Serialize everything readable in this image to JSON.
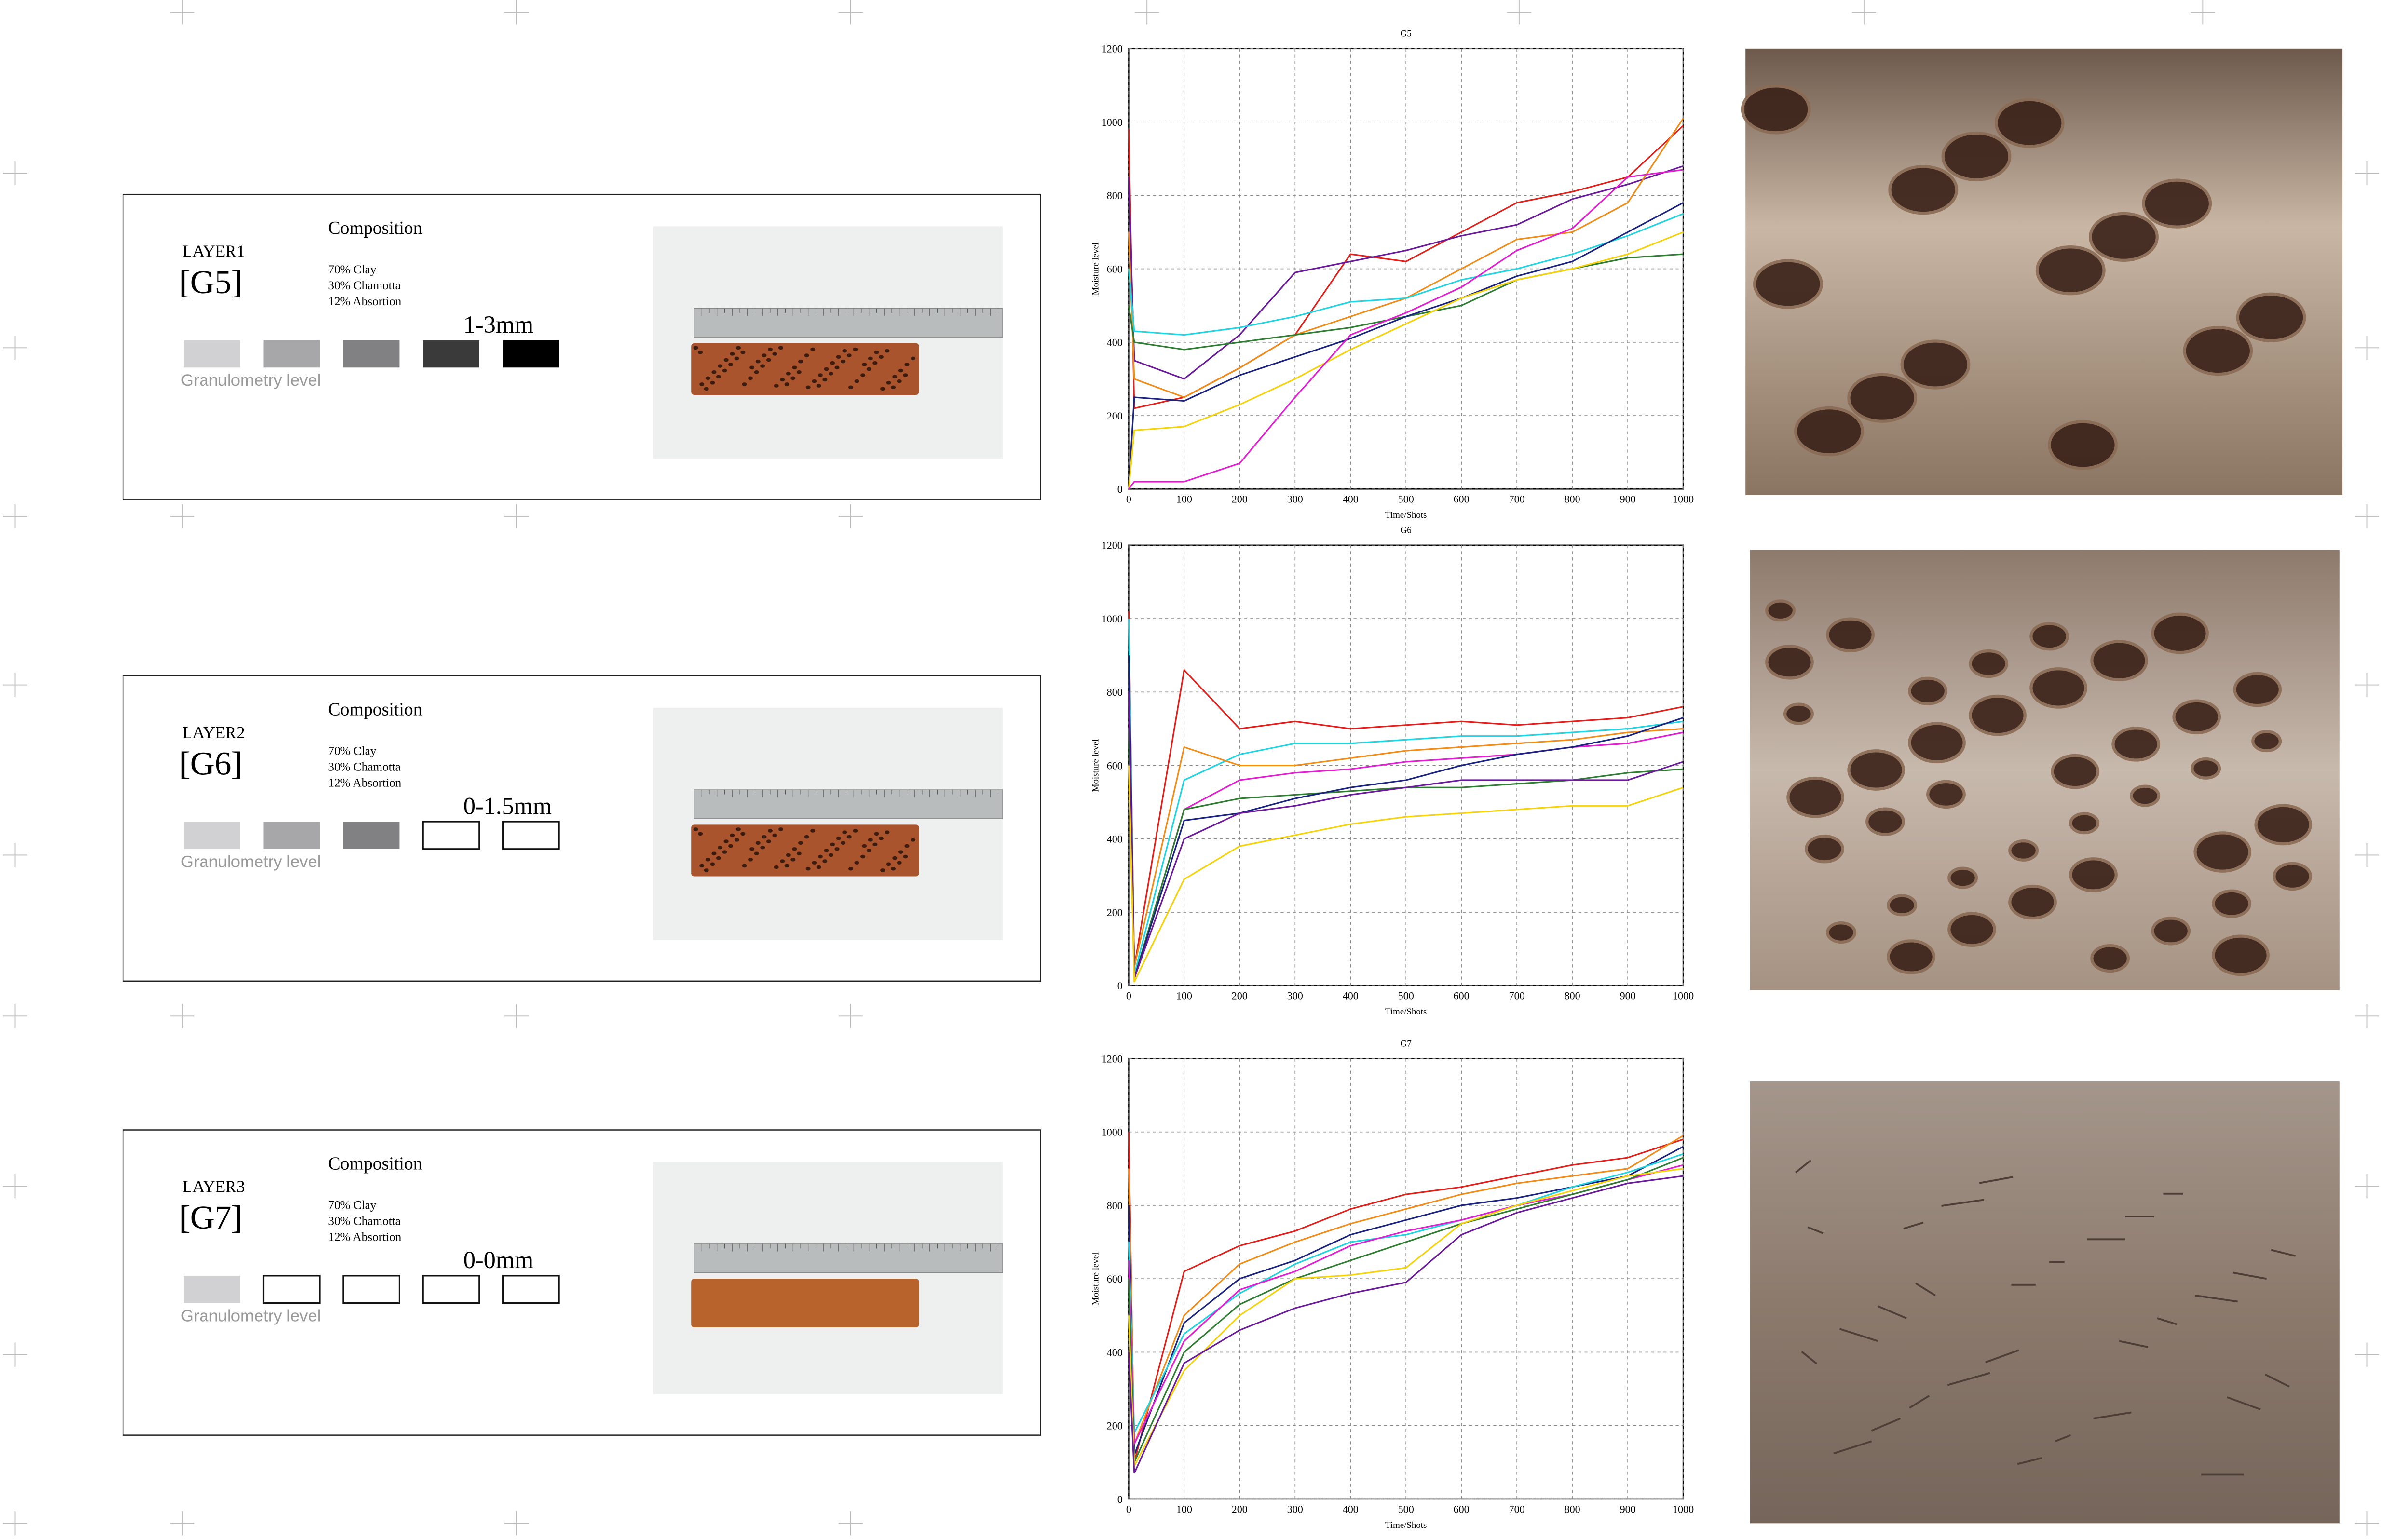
{
  "layers": [
    {
      "label": "LAYER1",
      "code": "[G5]",
      "heading": "Composition",
      "composition": [
        "70% Clay",
        "30% Chamotta",
        "12% Absortion"
      ],
      "size": "1-3mm",
      "granulometry_label": "Granulometry level",
      "level_colors": [
        "#d1d1d3",
        "#a7a7aa",
        "#818184",
        "#3a3a3a",
        "#000000"
      ]
    },
    {
      "label": "LAYER2",
      "code": "[G6]",
      "heading": "Composition",
      "composition": [
        "70% Clay",
        "30% Chamotta",
        "12% Absortion"
      ],
      "size": "0-1.5mm",
      "granulometry_label": "Granulometry level",
      "level_colors": [
        "#d1d1d3",
        "#a7a7aa",
        "#818184",
        "#ffffff",
        "#ffffff"
      ]
    },
    {
      "label": "LAYER3",
      "code": "[G7]",
      "heading": "Composition",
      "composition": [
        "70% Clay",
        "30% Chamotta",
        "12% Absortion"
      ],
      "size": "0-0mm",
      "granulometry_label": "Granulometry level",
      "level_colors": [
        "#d1d1d3",
        "#ffffff",
        "#ffffff",
        "#ffffff",
        "#ffffff"
      ]
    }
  ],
  "chart_data": [
    {
      "type": "line",
      "title": "G5",
      "x_label": "Time/Shots",
      "y_label": "Moisture level",
      "x": [
        0,
        10,
        100,
        200,
        300,
        400,
        500,
        600,
        700,
        800,
        900,
        1000
      ],
      "xlim": [
        0,
        1000
      ],
      "ylim": [
        0,
        1200
      ],
      "xticks": [
        0,
        100,
        200,
        300,
        400,
        500,
        600,
        700,
        800,
        900,
        1000
      ],
      "yticks": [
        0,
        200,
        400,
        600,
        800,
        1000,
        1200
      ],
      "grid": true,
      "series": [
        {
          "color": "#e0201b",
          "values": [
            980,
            220,
            250,
            330,
            420,
            640,
            620,
            700,
            780,
            810,
            850,
            990
          ]
        },
        {
          "color": "#6a1b9a",
          "values": [
            850,
            350,
            300,
            420,
            590,
            620,
            650,
            690,
            720,
            790,
            830,
            880
          ]
        },
        {
          "color": "#f08c1a",
          "values": [
            700,
            300,
            250,
            330,
            420,
            470,
            520,
            600,
            680,
            700,
            780,
            1010
          ]
        },
        {
          "color": "#22d3e0",
          "values": [
            600,
            430,
            420,
            440,
            470,
            510,
            520,
            570,
            600,
            640,
            690,
            750
          ]
        },
        {
          "color": "#2e7d32",
          "values": [
            500,
            400,
            380,
            400,
            420,
            440,
            470,
            500,
            570,
            600,
            630,
            640
          ]
        },
        {
          "color": "#1a237e",
          "values": [
            0,
            250,
            240,
            310,
            360,
            410,
            470,
            520,
            580,
            620,
            700,
            780
          ]
        },
        {
          "color": "#f5d20e",
          "values": [
            0,
            160,
            170,
            230,
            300,
            380,
            450,
            520,
            570,
            600,
            640,
            700
          ]
        },
        {
          "color": "#e020d0",
          "values": [
            0,
            20,
            20,
            70,
            250,
            420,
            480,
            550,
            650,
            710,
            850,
            870
          ]
        }
      ]
    },
    {
      "type": "line",
      "title": "G6",
      "x_label": "Time/Shots",
      "y_label": "Moisture level",
      "x": [
        0,
        10,
        100,
        200,
        300,
        400,
        500,
        600,
        700,
        800,
        900,
        1000
      ],
      "xlim": [
        0,
        1000
      ],
      "ylim": [
        0,
        1200
      ],
      "xticks": [
        0,
        100,
        200,
        300,
        400,
        500,
        600,
        700,
        800,
        900,
        1000
      ],
      "yticks": [
        0,
        200,
        400,
        600,
        800,
        1000,
        1200
      ],
      "grid": true,
      "series": [
        {
          "color": "#e0201b",
          "values": [
            1020,
            50,
            860,
            700,
            720,
            700,
            710,
            720,
            710,
            720,
            730,
            760
          ]
        },
        {
          "color": "#22d3e0",
          "values": [
            1000,
            30,
            560,
            630,
            660,
            660,
            670,
            680,
            680,
            690,
            700,
            720
          ]
        },
        {
          "color": "#f08c1a",
          "values": [
            900,
            50,
            650,
            600,
            600,
            620,
            640,
            650,
            660,
            670,
            690,
            700
          ]
        },
        {
          "color": "#e020d0",
          "values": [
            800,
            20,
            480,
            560,
            580,
            590,
            610,
            620,
            630,
            650,
            660,
            690
          ]
        },
        {
          "color": "#2e7d32",
          "values": [
            700,
            20,
            480,
            510,
            520,
            530,
            540,
            540,
            550,
            560,
            580,
            590
          ]
        },
        {
          "color": "#1a237e",
          "values": [
            900,
            20,
            450,
            470,
            510,
            540,
            560,
            600,
            630,
            650,
            680,
            730
          ]
        },
        {
          "color": "#6a1b9a",
          "values": [
            800,
            20,
            400,
            470,
            490,
            520,
            540,
            560,
            560,
            560,
            560,
            610
          ]
        },
        {
          "color": "#f5d20e",
          "values": [
            600,
            10,
            290,
            380,
            410,
            440,
            460,
            470,
            480,
            490,
            490,
            540
          ]
        }
      ]
    },
    {
      "type": "line",
      "title": "G7",
      "x_label": "Time/Shots",
      "y_label": "Moisture level",
      "x": [
        0,
        10,
        100,
        200,
        300,
        400,
        500,
        600,
        700,
        800,
        900,
        1000
      ],
      "xlim": [
        0,
        1000
      ],
      "ylim": [
        0,
        1200
      ],
      "xticks": [
        0,
        100,
        200,
        300,
        400,
        500,
        600,
        700,
        800,
        900,
        1000
      ],
      "yticks": [
        0,
        200,
        400,
        600,
        800,
        1000,
        1200
      ],
      "grid": true,
      "series": [
        {
          "color": "#e0201b",
          "values": [
            1000,
            100,
            620,
            690,
            730,
            790,
            830,
            850,
            880,
            910,
            930,
            980
          ]
        },
        {
          "color": "#f08c1a",
          "values": [
            900,
            150,
            500,
            640,
            700,
            750,
            790,
            830,
            860,
            880,
            900,
            990
          ]
        },
        {
          "color": "#1a237e",
          "values": [
            800,
            120,
            480,
            600,
            650,
            720,
            760,
            800,
            820,
            850,
            880,
            960
          ]
        },
        {
          "color": "#22d3e0",
          "values": [
            700,
            180,
            450,
            560,
            640,
            700,
            720,
            760,
            800,
            850,
            890,
            940
          ]
        },
        {
          "color": "#e020d0",
          "values": [
            650,
            150,
            430,
            570,
            620,
            690,
            730,
            760,
            800,
            830,
            870,
            910
          ]
        },
        {
          "color": "#2e7d32",
          "values": [
            600,
            100,
            400,
            530,
            600,
            650,
            700,
            750,
            790,
            830,
            870,
            930
          ]
        },
        {
          "color": "#f5d20e",
          "values": [
            500,
            90,
            350,
            500,
            600,
            610,
            630,
            750,
            800,
            840,
            880,
            900
          ]
        },
        {
          "color": "#6a1b9a",
          "values": [
            400,
            70,
            370,
            460,
            520,
            560,
            590,
            720,
            780,
            820,
            860,
            880
          ]
        }
      ]
    }
  ]
}
